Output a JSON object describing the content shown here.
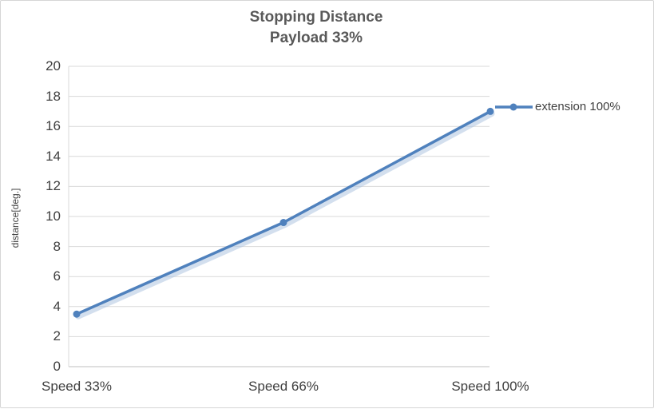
{
  "chart_data": {
    "type": "line",
    "title": "Stopping Distance",
    "subtitle": "Payload 33%",
    "categories": [
      "Speed 33%",
      "Speed 66%",
      "Speed 100%"
    ],
    "series": [
      {
        "name": "extension 100%",
        "values": [
          3.5,
          9.6,
          17
        ]
      }
    ],
    "xlabel": "",
    "ylabel": "distance[deg.]",
    "ylim": [
      0,
      20
    ],
    "ytick_step": 2,
    "grid": true,
    "legend_position": "right",
    "colors": {
      "line": "#4f81bd",
      "shadow": "#aec4e0",
      "grid": "#d9d9d9",
      "axis": "#bfbfbf",
      "text": "#404040",
      "title": "#595959"
    }
  }
}
